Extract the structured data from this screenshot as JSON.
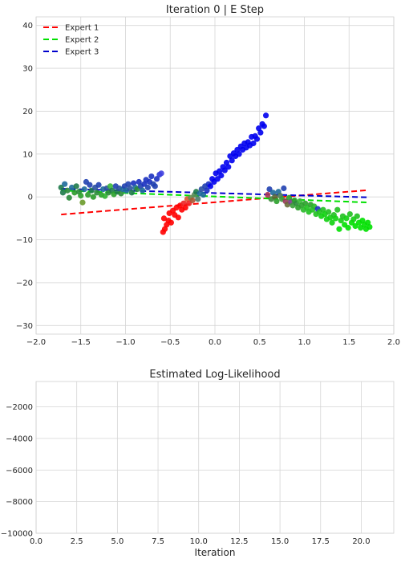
{
  "chart_data": [
    {
      "type": "scatter",
      "title": "Iteration  0 | E  Step",
      "xlim": [
        -2.0,
        2.0
      ],
      "ylim": [
        -32,
        42
      ],
      "xticks": [
        "−2.0",
        "−1.5",
        "−1.0",
        "−0.5",
        "0.0",
        "0.5",
        "1.0",
        "1.5",
        "2.0"
      ],
      "yticks": [
        "−30",
        "−20",
        "−10",
        "0",
        "10",
        "20",
        "30",
        "40"
      ],
      "grid": true,
      "legend_position": "top-left",
      "lines": [
        {
          "name": "Expert 1",
          "color": "#ff0000",
          "style": "dashed",
          "x": [
            -1.72,
            1.72
          ],
          "y": [
            -4.1,
            1.6
          ]
        },
        {
          "name": "Expert 2",
          "color": "#00e000",
          "style": "dashed",
          "x": [
            -1.72,
            1.72
          ],
          "y": [
            1.5,
            -1.3
          ]
        },
        {
          "name": "Expert 3",
          "color": "#0000cc",
          "style": "dashed",
          "x": [
            -1.72,
            1.72
          ],
          "y": [
            1.9,
            -0.1
          ]
        }
      ],
      "points": [
        {
          "x": -1.72,
          "y": 2.2,
          "color": "#1e7a4a"
        },
        {
          "x": -1.7,
          "y": 1.0,
          "color": "#1e7a4a"
        },
        {
          "x": -1.68,
          "y": 3.0,
          "color": "#1e6a9a"
        },
        {
          "x": -1.65,
          "y": 1.5,
          "color": "#2a8a3a"
        },
        {
          "x": -1.63,
          "y": -0.2,
          "color": "#2a8a3a"
        },
        {
          "x": -1.6,
          "y": 2.2,
          "color": "#1e6a9a"
        },
        {
          "x": -1.57,
          "y": 1.0,
          "color": "#2a9a2a"
        },
        {
          "x": -1.55,
          "y": 2.5,
          "color": "#1e7a4a"
        },
        {
          "x": -1.52,
          "y": 1.2,
          "color": "#2a8a3a"
        },
        {
          "x": -1.5,
          "y": 0.3,
          "color": "#2aa02a"
        },
        {
          "x": -1.48,
          "y": -1.3,
          "color": "#6a9a2a"
        },
        {
          "x": -1.46,
          "y": 1.8,
          "color": "#1e6a9a"
        },
        {
          "x": -1.44,
          "y": 3.5,
          "color": "#2040b0"
        },
        {
          "x": -1.42,
          "y": 0.5,
          "color": "#2a9a2a"
        },
        {
          "x": -1.4,
          "y": 2.8,
          "color": "#2040b0"
        },
        {
          "x": -1.38,
          "y": 1.5,
          "color": "#1e7a4a"
        },
        {
          "x": -1.36,
          "y": 0.0,
          "color": "#2a9a2a"
        },
        {
          "x": -1.34,
          "y": 2.2,
          "color": "#2a50a0"
        },
        {
          "x": -1.32,
          "y": 1.0,
          "color": "#2a8a3a"
        },
        {
          "x": -1.3,
          "y": 2.8,
          "color": "#2040b0"
        },
        {
          "x": -1.27,
          "y": 0.5,
          "color": "#2aa02a"
        },
        {
          "x": -1.25,
          "y": 1.8,
          "color": "#1e6a9a"
        },
        {
          "x": -1.23,
          "y": 0.2,
          "color": "#30b030"
        },
        {
          "x": -1.21,
          "y": 2.0,
          "color": "#2a50a0"
        },
        {
          "x": -1.19,
          "y": 1.0,
          "color": "#2a8a3a"
        },
        {
          "x": -1.17,
          "y": 2.5,
          "color": "#3ab83a"
        },
        {
          "x": -1.15,
          "y": 1.5,
          "color": "#1e7a4a"
        },
        {
          "x": -1.13,
          "y": 0.6,
          "color": "#2aa02a"
        },
        {
          "x": -1.11,
          "y": 2.5,
          "color": "#2040b0"
        },
        {
          "x": -1.09,
          "y": 1.2,
          "color": "#1e7a4a"
        },
        {
          "x": -1.07,
          "y": 2.0,
          "color": "#2a50a0"
        },
        {
          "x": -1.05,
          "y": 0.8,
          "color": "#2a8a3a"
        },
        {
          "x": -1.03,
          "y": 1.8,
          "color": "#1e6a9a"
        },
        {
          "x": -1.01,
          "y": 2.5,
          "color": "#2040b0"
        },
        {
          "x": -0.99,
          "y": 1.5,
          "color": "#1e6a9a"
        },
        {
          "x": -0.97,
          "y": 3.0,
          "color": "#2040b0"
        },
        {
          "x": -0.95,
          "y": 2.0,
          "color": "#2a50a0"
        },
        {
          "x": -0.93,
          "y": 1.0,
          "color": "#1e7a4a"
        },
        {
          "x": -0.91,
          "y": 3.2,
          "color": "#1a30c0"
        },
        {
          "x": -0.89,
          "y": 2.2,
          "color": "#1e6a9a"
        },
        {
          "x": -0.87,
          "y": 1.8,
          "color": "#2a8a3a"
        },
        {
          "x": -0.85,
          "y": 3.5,
          "color": "#1a30c0"
        },
        {
          "x": -0.83,
          "y": 2.5,
          "color": "#2040b0"
        },
        {
          "x": -0.81,
          "y": 1.5,
          "color": "#1e6a9a"
        },
        {
          "x": -0.79,
          "y": 3.0,
          "color": "#1a30c0"
        },
        {
          "x": -0.77,
          "y": 4.0,
          "color": "#1a30c0"
        },
        {
          "x": -0.75,
          "y": 2.2,
          "color": "#2040b0"
        },
        {
          "x": -0.73,
          "y": 3.5,
          "color": "#1a30c0"
        },
        {
          "x": -0.71,
          "y": 4.8,
          "color": "#1a30c0"
        },
        {
          "x": -0.69,
          "y": 3.0,
          "color": "#2040b0"
        },
        {
          "x": -0.67,
          "y": 2.5,
          "color": "#2040b0"
        },
        {
          "x": -0.65,
          "y": 4.2,
          "color": "#1a30c0"
        },
        {
          "x": -0.62,
          "y": 5.2,
          "color": "#2a3ad0"
        },
        {
          "x": -0.6,
          "y": 5.5,
          "color": "#4040e0"
        },
        {
          "x": -0.58,
          "y": -8.2,
          "color": "#ff0000"
        },
        {
          "x": -0.57,
          "y": -5.0,
          "color": "#ff0000"
        },
        {
          "x": -0.56,
          "y": -7.5,
          "color": "#ff0000"
        },
        {
          "x": -0.54,
          "y": -6.5,
          "color": "#ff0000"
        },
        {
          "x": -0.52,
          "y": -5.5,
          "color": "#ff0000"
        },
        {
          "x": -0.51,
          "y": -3.8,
          "color": "#ff0000"
        },
        {
          "x": -0.49,
          "y": -6.0,
          "color": "#ff0000"
        },
        {
          "x": -0.47,
          "y": -3.2,
          "color": "#ff0000"
        },
        {
          "x": -0.45,
          "y": -4.2,
          "color": "#ff0000"
        },
        {
          "x": -0.43,
          "y": -2.5,
          "color": "#ff0000"
        },
        {
          "x": -0.41,
          "y": -4.8,
          "color": "#ff0000"
        },
        {
          "x": -0.39,
          "y": -2.0,
          "color": "#ff0000"
        },
        {
          "x": -0.37,
          "y": -3.0,
          "color": "#ff0000"
        },
        {
          "x": -0.35,
          "y": -1.5,
          "color": "#ee2222"
        },
        {
          "x": -0.33,
          "y": -2.5,
          "color": "#ff0000"
        },
        {
          "x": -0.31,
          "y": -0.5,
          "color": "#dd5533"
        },
        {
          "x": -0.29,
          "y": -1.5,
          "color": "#ee2222"
        },
        {
          "x": -0.27,
          "y": -0.2,
          "color": "#6a8a4a"
        },
        {
          "x": -0.25,
          "y": -0.8,
          "color": "#aa5533"
        },
        {
          "x": -0.23,
          "y": 0.5,
          "color": "#5a8a5a"
        },
        {
          "x": -0.21,
          "y": 1.2,
          "color": "#1e7a4a"
        },
        {
          "x": -0.19,
          "y": -0.5,
          "color": "#4a7a6a"
        },
        {
          "x": -0.17,
          "y": 0.8,
          "color": "#1e6a9a"
        },
        {
          "x": -0.15,
          "y": 1.8,
          "color": "#2a50a0"
        },
        {
          "x": -0.13,
          "y": 0.5,
          "color": "#1e6a9a"
        },
        {
          "x": -0.11,
          "y": 2.5,
          "color": "#2040b0"
        },
        {
          "x": -0.09,
          "y": 1.5,
          "color": "#1a30c0"
        },
        {
          "x": -0.07,
          "y": 3.0,
          "color": "#1a30c0"
        },
        {
          "x": -0.05,
          "y": 2.5,
          "color": "#0000ee"
        },
        {
          "x": -0.03,
          "y": 4.2,
          "color": "#0000ee"
        },
        {
          "x": -0.01,
          "y": 3.5,
          "color": "#0000ee"
        },
        {
          "x": 0.01,
          "y": 5.5,
          "color": "#0000ee"
        },
        {
          "x": 0.03,
          "y": 4.2,
          "color": "#0000ee"
        },
        {
          "x": 0.05,
          "y": 6.0,
          "color": "#0000ee"
        },
        {
          "x": 0.07,
          "y": 5.0,
          "color": "#0000ee"
        },
        {
          "x": 0.09,
          "y": 7.0,
          "color": "#0000ee"
        },
        {
          "x": 0.11,
          "y": 6.2,
          "color": "#0000ee"
        },
        {
          "x": 0.13,
          "y": 8.0,
          "color": "#0000ee"
        },
        {
          "x": 0.15,
          "y": 7.0,
          "color": "#0000ee"
        },
        {
          "x": 0.17,
          "y": 9.5,
          "color": "#0000ee"
        },
        {
          "x": 0.19,
          "y": 8.5,
          "color": "#0000ee"
        },
        {
          "x": 0.21,
          "y": 10.2,
          "color": "#0000ee"
        },
        {
          "x": 0.23,
          "y": 9.5,
          "color": "#0000ee"
        },
        {
          "x": 0.25,
          "y": 11.0,
          "color": "#0000ee"
        },
        {
          "x": 0.27,
          "y": 10.0,
          "color": "#0000ee"
        },
        {
          "x": 0.29,
          "y": 11.8,
          "color": "#0000ee"
        },
        {
          "x": 0.31,
          "y": 11.0,
          "color": "#0000ee"
        },
        {
          "x": 0.33,
          "y": 12.5,
          "color": "#0000ee"
        },
        {
          "x": 0.35,
          "y": 11.5,
          "color": "#0000ee"
        },
        {
          "x": 0.37,
          "y": 12.8,
          "color": "#0000ee"
        },
        {
          "x": 0.39,
          "y": 12.0,
          "color": "#0000ee"
        },
        {
          "x": 0.41,
          "y": 14.0,
          "color": "#0000ee"
        },
        {
          "x": 0.43,
          "y": 12.5,
          "color": "#0000ee"
        },
        {
          "x": 0.45,
          "y": 14.2,
          "color": "#0000ee"
        },
        {
          "x": 0.47,
          "y": 13.5,
          "color": "#0000ee"
        },
        {
          "x": 0.49,
          "y": 16.0,
          "color": "#0000ee"
        },
        {
          "x": 0.51,
          "y": 15.0,
          "color": "#0000ee"
        },
        {
          "x": 0.53,
          "y": 17.0,
          "color": "#0000ee"
        },
        {
          "x": 0.55,
          "y": 16.5,
          "color": "#0000ee"
        },
        {
          "x": 0.57,
          "y": 19.0,
          "color": "#0000ee"
        },
        {
          "x": 0.59,
          "y": 0.5,
          "color": "#aa3355"
        },
        {
          "x": 0.61,
          "y": 1.8,
          "color": "#2040b0"
        },
        {
          "x": 0.63,
          "y": -0.5,
          "color": "#3a8a3a"
        },
        {
          "x": 0.65,
          "y": 1.0,
          "color": "#1e6a9a"
        },
        {
          "x": 0.67,
          "y": 0.0,
          "color": "#5a6a3a"
        },
        {
          "x": 0.69,
          "y": -1.0,
          "color": "#2aa02a"
        },
        {
          "x": 0.71,
          "y": 1.2,
          "color": "#1e6a9a"
        },
        {
          "x": 0.73,
          "y": 0.3,
          "color": "#4a7a5a"
        },
        {
          "x": 0.75,
          "y": -0.5,
          "color": "#3a9a3a"
        },
        {
          "x": 0.77,
          "y": 2.0,
          "color": "#2040b0"
        },
        {
          "x": 0.79,
          "y": -1.0,
          "color": "#9a3a5a"
        },
        {
          "x": 0.81,
          "y": -1.8,
          "color": "#6a6a3a"
        },
        {
          "x": 0.83,
          "y": -0.2,
          "color": "#2aa02a"
        },
        {
          "x": 0.85,
          "y": -1.2,
          "color": "#7a3a8a"
        },
        {
          "x": 0.87,
          "y": -2.0,
          "color": "#3aa03a"
        },
        {
          "x": 0.89,
          "y": -0.8,
          "color": "#2aa02a"
        },
        {
          "x": 0.91,
          "y": -1.5,
          "color": "#2a8a3a"
        },
        {
          "x": 0.93,
          "y": -2.5,
          "color": "#2aa02a"
        },
        {
          "x": 0.95,
          "y": -1.0,
          "color": "#3ab83a"
        },
        {
          "x": 0.97,
          "y": -2.0,
          "color": "#2aa02a"
        },
        {
          "x": 0.99,
          "y": -3.0,
          "color": "#2ab82a"
        },
        {
          "x": 1.01,
          "y": -1.5,
          "color": "#2aa02a"
        },
        {
          "x": 1.03,
          "y": -2.5,
          "color": "#20c020"
        },
        {
          "x": 1.05,
          "y": -3.5,
          "color": "#20c020"
        },
        {
          "x": 1.07,
          "y": -1.8,
          "color": "#2aa02a"
        },
        {
          "x": 1.09,
          "y": -3.0,
          "color": "#20c020"
        },
        {
          "x": 1.11,
          "y": -2.2,
          "color": "#2ab82a"
        },
        {
          "x": 1.13,
          "y": -4.0,
          "color": "#20c020"
        },
        {
          "x": 1.15,
          "y": -2.8,
          "color": "#1a30c0"
        },
        {
          "x": 1.17,
          "y": -3.5,
          "color": "#20c020"
        },
        {
          "x": 1.19,
          "y": -4.5,
          "color": "#10d010"
        },
        {
          "x": 1.21,
          "y": -3.0,
          "color": "#20c020"
        },
        {
          "x": 1.23,
          "y": -4.0,
          "color": "#10d010"
        },
        {
          "x": 1.25,
          "y": -5.2,
          "color": "#10d010"
        },
        {
          "x": 1.27,
          "y": -3.5,
          "color": "#20c020"
        },
        {
          "x": 1.29,
          "y": -4.8,
          "color": "#10d010"
        },
        {
          "x": 1.31,
          "y": -6.0,
          "color": "#10d010"
        },
        {
          "x": 1.33,
          "y": -4.2,
          "color": "#20c020"
        },
        {
          "x": 1.35,
          "y": -5.0,
          "color": "#10d010"
        },
        {
          "x": 1.37,
          "y": -3.0,
          "color": "#20c020"
        },
        {
          "x": 1.39,
          "y": -7.5,
          "color": "#00e000"
        },
        {
          "x": 1.41,
          "y": -5.5,
          "color": "#10d010"
        },
        {
          "x": 1.43,
          "y": -4.5,
          "color": "#20c020"
        },
        {
          "x": 1.45,
          "y": -6.5,
          "color": "#00e000"
        },
        {
          "x": 1.47,
          "y": -5.0,
          "color": "#10d010"
        },
        {
          "x": 1.49,
          "y": -7.2,
          "color": "#00e000"
        },
        {
          "x": 1.51,
          "y": -4.0,
          "color": "#20c020"
        },
        {
          "x": 1.53,
          "y": -6.0,
          "color": "#00e000"
        },
        {
          "x": 1.55,
          "y": -5.2,
          "color": "#10d010"
        },
        {
          "x": 1.57,
          "y": -6.8,
          "color": "#00e000"
        },
        {
          "x": 1.59,
          "y": -4.5,
          "color": "#20c020"
        },
        {
          "x": 1.61,
          "y": -6.0,
          "color": "#00e000"
        },
        {
          "x": 1.63,
          "y": -7.2,
          "color": "#00e000"
        },
        {
          "x": 1.65,
          "y": -5.5,
          "color": "#00e000"
        },
        {
          "x": 1.67,
          "y": -6.5,
          "color": "#00e000"
        },
        {
          "x": 1.69,
          "y": -7.5,
          "color": "#00e000"
        },
        {
          "x": 1.71,
          "y": -6.0,
          "color": "#00e000"
        },
        {
          "x": 1.73,
          "y": -7.0,
          "color": "#00e000"
        }
      ]
    },
    {
      "type": "line",
      "title": "Estimated Log-Likelihood",
      "xlabel": "Iteration",
      "xlim": [
        0,
        22
      ],
      "ylim": [
        -10000,
        -400
      ],
      "xticks": [
        "0.0",
        "2.5",
        "5.0",
        "7.5",
        "10.0",
        "12.5",
        "15.0",
        "17.5",
        "20.0"
      ],
      "yticks": [
        "−10000",
        "−8000",
        "−6000",
        "−4000",
        "−2000"
      ],
      "grid": true,
      "series": []
    }
  ]
}
